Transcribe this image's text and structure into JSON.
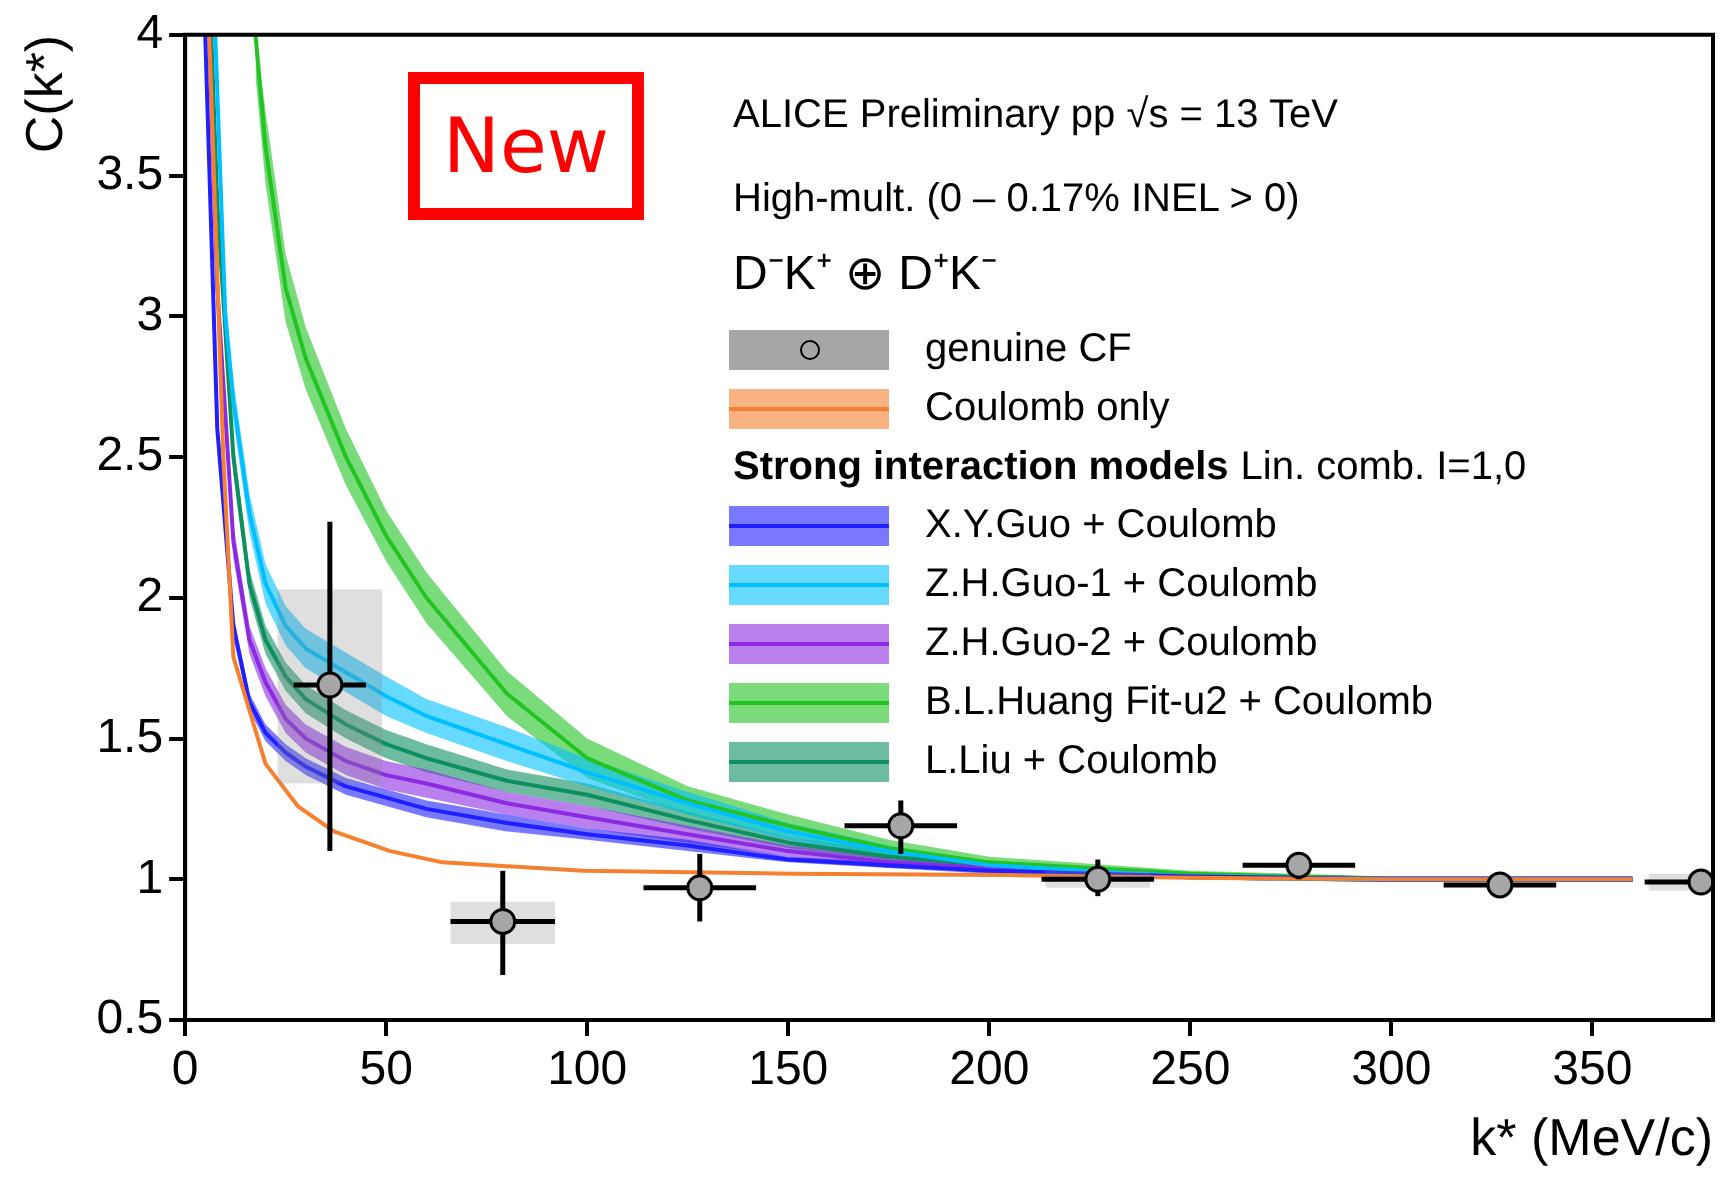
{
  "chart_data": {
    "type": "line",
    "xlabel": "k* (MeV/c)",
    "ylabel": "C(k*)",
    "legend_title": "Strong interaction models",
    "annotations": [
      "ALICE Preliminary pp √s = 13 TeV",
      "High-mult. (0 – 0.17% INEL > 0)",
      "D⁻K⁺ ⊕ D⁺K⁻",
      "New",
      "Lin. comb. I=1,0"
    ],
    "xlim": [
      0,
      380
    ],
    "xticks": [
      0,
      50,
      100,
      150,
      200,
      250,
      300,
      350
    ],
    "ylim": [
      0.5,
      4
    ],
    "yticks": [
      0.5,
      1,
      1.5,
      2,
      2.5,
      3,
      3.5,
      4
    ],
    "legend": "right",
    "grid": false,
    "series": [
      {
        "name": "genuine CF",
        "type": "scatter",
        "marker": "circle",
        "color": "#a6a6a6",
        "x": [
          36,
          79,
          128,
          178,
          227,
          277,
          327,
          377
        ],
        "values": [
          1.69,
          0.85,
          0.97,
          1.19,
          1.0,
          1.05,
          0.98,
          0.99
        ],
        "errors": [
          [
            1.1,
            2.27
          ],
          [
            0.66,
            1.03
          ],
          [
            0.85,
            1.09
          ],
          [
            1.09,
            1.28
          ],
          [
            0.94,
            1.07
          ],
          [
            1.0,
            1.09
          ],
          [
            0.96,
            1.0
          ],
          [
            0.97,
            1.01
          ]
        ],
        "xerrors": [
          9,
          13,
          14,
          14,
          14,
          14,
          14,
          [
            363,
            380
          ]
        ]
      },
      {
        "type": "bar",
        "color": "#8c8c8c",
        "x": [
          36,
          79,
          227,
          377
        ],
        "base": [
          1.34,
          0.77,
          0.97,
          0.96
        ],
        "values": [
          0.69,
          0.15,
          0.06,
          0.06
        ]
      },
      {
        "name": "Coulomb only",
        "color": "#f5802f",
        "x": [
          6,
          9.5,
          12,
          20,
          28,
          37,
          45,
          51,
          64,
          99,
          151,
          203,
          250,
          300,
          360
        ],
        "values": [
          4.0,
          2.5,
          1.79,
          1.41,
          1.26,
          1.17,
          1.13,
          1.1,
          1.06,
          1.03,
          1.02,
          1.015,
          1.005,
          1.0,
          1.0
        ]
      },
      {
        "name": "X.Y.Guo + Coulomb",
        "color": "#1f1fff",
        "x": [
          5,
          8,
          12,
          16,
          20,
          25,
          30,
          40,
          50,
          60,
          80,
          100,
          125,
          150,
          175,
          200,
          250,
          300,
          360
        ],
        "values": [
          4.0,
          2.6,
          1.9,
          1.63,
          1.52,
          1.45,
          1.4,
          1.33,
          1.29,
          1.25,
          1.2,
          1.16,
          1.12,
          1.07,
          1.05,
          1.03,
          1.01,
          1.0,
          1.0
        ],
        "lower": [
          3.9,
          2.55,
          1.86,
          1.6,
          1.49,
          1.42,
          1.37,
          1.3,
          1.26,
          1.22,
          1.17,
          1.14,
          1.1,
          1.06,
          1.04,
          1.02,
          1.0,
          0.99,
          0.99
        ],
        "upper": [
          4.0,
          2.65,
          1.94,
          1.66,
          1.55,
          1.48,
          1.43,
          1.36,
          1.32,
          1.28,
          1.23,
          1.18,
          1.14,
          1.08,
          1.06,
          1.04,
          1.02,
          1.01,
          1.01
        ]
      },
      {
        "name": "Z.H.Guo-1 + Coulomb",
        "color": "#00bfff",
        "x": [
          7.5,
          10,
          12,
          16,
          20,
          25,
          30,
          50,
          60,
          80,
          100,
          125,
          150,
          175,
          200,
          250,
          300,
          360
        ],
        "values": [
          4.0,
          3.0,
          2.7,
          2.3,
          2.05,
          1.9,
          1.82,
          1.65,
          1.58,
          1.48,
          1.38,
          1.27,
          1.17,
          1.1,
          1.05,
          1.01,
          1.0,
          1.0
        ],
        "lower": [
          3.9,
          2.92,
          2.63,
          2.23,
          1.98,
          1.83,
          1.75,
          1.58,
          1.52,
          1.42,
          1.33,
          1.23,
          1.14,
          1.08,
          1.04,
          1.0,
          0.99,
          0.99
        ],
        "upper": [
          4.0,
          3.08,
          2.77,
          2.37,
          2.12,
          1.97,
          1.89,
          1.72,
          1.64,
          1.54,
          1.43,
          1.31,
          1.2,
          1.12,
          1.06,
          1.02,
          1.01,
          1.01
        ]
      },
      {
        "name": "Z.H.Guo-2 + Coulomb",
        "color": "#8a2be2",
        "x": [
          6,
          8,
          12,
          16,
          20,
          25,
          30,
          40,
          50,
          60,
          80,
          100,
          125,
          150,
          175,
          200,
          250,
          300,
          360
        ],
        "values": [
          4.0,
          3.1,
          2.2,
          1.85,
          1.7,
          1.57,
          1.5,
          1.42,
          1.37,
          1.34,
          1.27,
          1.22,
          1.16,
          1.1,
          1.06,
          1.04,
          1.01,
          1.0,
          1.0
        ],
        "lower": [
          3.9,
          3.03,
          2.14,
          1.8,
          1.65,
          1.52,
          1.45,
          1.37,
          1.32,
          1.29,
          1.23,
          1.18,
          1.13,
          1.08,
          1.04,
          1.03,
          1.0,
          0.99,
          0.99
        ],
        "upper": [
          4.0,
          3.17,
          2.26,
          1.9,
          1.75,
          1.62,
          1.55,
          1.47,
          1.42,
          1.39,
          1.31,
          1.26,
          1.19,
          1.12,
          1.08,
          1.05,
          1.02,
          1.01,
          1.01
        ]
      },
      {
        "name": "B.L.Huang Fit-u2 + Coulomb",
        "color": "#22c322",
        "x": [
          17.5,
          20,
          25,
          30,
          40,
          50,
          60,
          80,
          100,
          125,
          150,
          175,
          200,
          250,
          300,
          360
        ],
        "values": [
          4.0,
          3.6,
          3.1,
          2.85,
          2.5,
          2.22,
          2.0,
          1.66,
          1.43,
          1.28,
          1.19,
          1.11,
          1.06,
          1.02,
          1.0,
          1.0
        ],
        "lower": [
          3.85,
          3.47,
          2.98,
          2.74,
          2.4,
          2.13,
          1.91,
          1.58,
          1.36,
          1.23,
          1.15,
          1.08,
          1.04,
          1.01,
          0.99,
          0.99
        ],
        "upper": [
          4.0,
          3.73,
          3.22,
          2.96,
          2.6,
          2.31,
          2.09,
          1.74,
          1.5,
          1.33,
          1.23,
          1.14,
          1.08,
          1.03,
          1.01,
          1.01
        ]
      },
      {
        "name": "L.Liu + Coulomb",
        "color": "#0d8f5f",
        "x": [
          6.5,
          8,
          12,
          16,
          20,
          25,
          30,
          40,
          50,
          60,
          80,
          100,
          125,
          150,
          175,
          200,
          250,
          300,
          360
        ],
        "values": [
          4.0,
          3.4,
          2.5,
          2.05,
          1.85,
          1.72,
          1.64,
          1.55,
          1.48,
          1.43,
          1.35,
          1.3,
          1.21,
          1.13,
          1.08,
          1.05,
          1.01,
          1.0,
          1.0
        ],
        "lower": [
          3.9,
          3.33,
          2.44,
          2.0,
          1.8,
          1.67,
          1.59,
          1.5,
          1.43,
          1.38,
          1.31,
          1.26,
          1.18,
          1.11,
          1.06,
          1.04,
          1.0,
          0.99,
          0.99
        ],
        "upper": [
          4.0,
          3.47,
          2.56,
          2.1,
          1.9,
          1.77,
          1.69,
          1.6,
          1.53,
          1.48,
          1.39,
          1.34,
          1.24,
          1.15,
          1.1,
          1.06,
          1.02,
          1.01,
          1.01
        ]
      }
    ]
  }
}
